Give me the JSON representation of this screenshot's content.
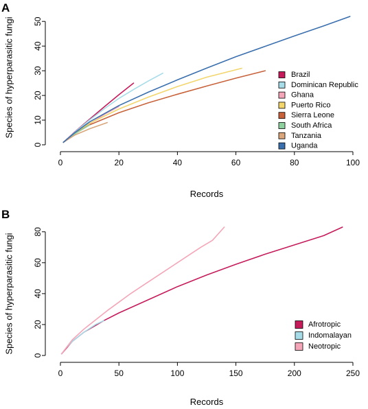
{
  "chart_data": [
    {
      "panel": "A",
      "type": "line",
      "xlabel": "Records",
      "ylabel": "Species of hyperparasitic fungi",
      "xlim": [
        0,
        100
      ],
      "ylim": [
        0,
        52
      ],
      "xticks": [
        0,
        20,
        40,
        60,
        80,
        100
      ],
      "yticks": [
        0,
        10,
        20,
        30,
        40,
        50
      ],
      "legend_position": "right",
      "series": [
        {
          "name": "Brazil",
          "color": "#c51b5b",
          "x": [
            1,
            5,
            10,
            15,
            20,
            25
          ],
          "y": [
            1,
            5.3,
            10.4,
            15.4,
            20.3,
            25
          ]
        },
        {
          "name": "Dominican Republic",
          "color": "#a6dce8",
          "x": [
            1,
            5,
            10,
            15,
            20,
            25,
            30,
            35
          ],
          "y": [
            1,
            5.2,
            10.1,
            14.6,
            18.8,
            22.4,
            25.8,
            29
          ]
        },
        {
          "name": "Ghana",
          "color": "#f4a6b8",
          "x": [
            1,
            5,
            10,
            15,
            20
          ],
          "y": [
            1,
            4.5,
            8.5,
            12.3,
            15.5
          ]
        },
        {
          "name": "Puerto Rico",
          "color": "#f2d56b",
          "x": [
            1,
            5,
            10,
            20,
            30,
            40,
            50,
            62
          ],
          "y": [
            1,
            4.8,
            8.7,
            14.5,
            19.3,
            23.6,
            27.4,
            31
          ]
        },
        {
          "name": "Sierra Leone",
          "color": "#c8623a",
          "x": [
            1,
            5,
            10,
            20,
            30,
            40,
            50,
            60,
            70
          ],
          "y": [
            1,
            4.6,
            8.1,
            13,
            17,
            20.5,
            23.8,
            27,
            30
          ]
        },
        {
          "name": "South Africa",
          "color": "#8fd19e",
          "x": [
            1,
            5,
            10
          ],
          "y": [
            1,
            4.5,
            8
          ]
        },
        {
          "name": "Tanzania",
          "color": "#d9a57a",
          "x": [
            1,
            5,
            10,
            16
          ],
          "y": [
            1,
            4,
            6.5,
            9
          ]
        },
        {
          "name": "Uganda",
          "color": "#3a6fae",
          "x": [
            1,
            5,
            10,
            20,
            30,
            40,
            50,
            60,
            70,
            80,
            90,
            99
          ],
          "y": [
            1,
            5,
            9.3,
            15.9,
            21.3,
            26.3,
            31.1,
            35.7,
            39.9,
            44.1,
            48.2,
            52
          ]
        }
      ]
    },
    {
      "panel": "B",
      "type": "line",
      "xlabel": "Records",
      "ylabel": "Species of hyperparasitic fungi",
      "xlim": [
        0,
        250
      ],
      "ylim": [
        0,
        83
      ],
      "xticks": [
        0,
        50,
        100,
        150,
        200,
        250
      ],
      "yticks": [
        0,
        20,
        40,
        60,
        80
      ],
      "legend_position": "bottom-right",
      "series": [
        {
          "name": "Afrotropic",
          "color": "#c51b5b",
          "x": [
            1,
            10,
            20,
            37,
            50,
            75,
            100,
            125,
            150,
            175,
            200,
            225,
            241
          ],
          "y": [
            1,
            9,
            15,
            22.5,
            27.5,
            36,
            44.5,
            52,
            59,
            65.5,
            71.5,
            77.5,
            83
          ]
        },
        {
          "name": "Indomalayan",
          "color": "#a6dce8",
          "x": [
            1,
            5,
            10,
            15,
            20,
            25,
            30,
            37
          ],
          "y": [
            1,
            5,
            9,
            12,
            15,
            17.5,
            20,
            22.5
          ]
        },
        {
          "name": "Neotropic",
          "color": "#f4a6b8",
          "x": [
            1,
            10,
            20,
            30,
            40,
            50,
            60,
            70,
            80,
            90,
            100,
            110,
            120,
            130,
            140
          ],
          "y": [
            1,
            10,
            17,
            23,
            29,
            34.5,
            40,
            45,
            50,
            55,
            60,
            65,
            70,
            74.5,
            83
          ]
        }
      ]
    }
  ]
}
